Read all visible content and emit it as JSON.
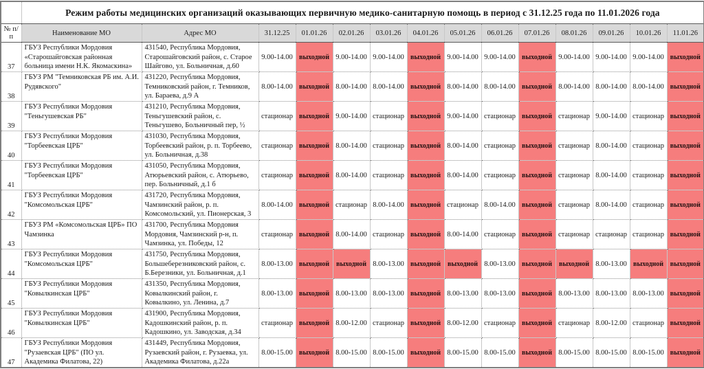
{
  "title": "Режим работы медицинских организаций оказывающих первичную медико-санитарную помощь в период с 31.12.25 года по 11.01.2026 года",
  "columns": {
    "num": "№ п/п",
    "name": "Наименование МО",
    "address": "Адрес МО",
    "dates": [
      "31.12.25",
      "01.01.26",
      "02.01.26",
      "03.01.26",
      "04.01.26",
      "05.01.26",
      "06.01.26",
      "07.01.26",
      "08.01.26",
      "09.01.26",
      "10.01.26",
      "11.01.26"
    ]
  },
  "labels": {
    "weekend": "выходной",
    "inpatient": "стационар"
  },
  "colors": {
    "weekend_bg": "#f67d7d",
    "header_bg": "#d9d9d9",
    "grid": "#8f8f8f"
  },
  "rows": [
    {
      "num": "37",
      "name": "ГБУЗ Республики Мордовия «Старошайговская районная больница имени Н.К. Якомаскина»",
      "address": "431540, Республика Мордовия, Старошайговский район, с. Старое Шайгово, ул. Больничная, д.60",
      "schedule": [
        "9.00-14.00",
        "выходной",
        "9.00-14.00",
        "9.00-14.00",
        "выходной",
        "9.00-14.00",
        "9.00-14.00",
        "выходной",
        "9.00-14.00",
        "9.00-14.00",
        "9.00-14.00",
        "выходной"
      ]
    },
    {
      "num": "38",
      "name": "ГБУЗ РМ \"Темниковская РБ им. А.И. Рудявского\"",
      "address": "431220, Республика Мордовия, Темниковский район, г. Темников, ул. Бараева, д.9 А",
      "schedule": [
        "8.00-14.00",
        "выходной",
        "8.00-14.00",
        "8.00-14.00",
        "выходной",
        "8.00-14.00",
        "8.00-14.00",
        "выходной",
        "8.00-14.00",
        "8.00-14.00",
        "8.00-14.00",
        "выходной"
      ]
    },
    {
      "num": "39",
      "name": "ГБУЗ Республики Мордовия \"Теньгушевская РБ\"",
      "address": "431210, Республика Мордовия, Теньгушевский район, с. Теньгушево, Больничный пер, ½",
      "schedule": [
        "стационар",
        "выходной",
        "9.00-14.00",
        "стационар",
        "выходной",
        "9.00-14.00",
        "стационар",
        "выходной",
        "стационар",
        "9.00-14.00",
        "стационар",
        "выходной"
      ]
    },
    {
      "num": "40",
      "name": "ГБУЗ Республики Мордовия \"Торбеевская ЦРБ\"",
      "address": "431030, Республика Мордовия, Торбеевский район, р. п. Торбеево, ул. Больничная, д.38",
      "schedule": [
        "стационар",
        "выходной",
        "8.00-14.00",
        "стационар",
        "выходной",
        "8.00-14.00",
        "стационар",
        "выходной",
        "стационар",
        "8.00-14.00",
        "стационар",
        "выходной"
      ]
    },
    {
      "num": "41",
      "name": "ГБУЗ Республики Мордовия \"Торбеевская ЦРБ\"",
      "address": "431050, Республика Мордовия, Атюрьевский район, с. Атюрьево, пер. Больничный, д.1 б",
      "schedule": [
        "стационар",
        "выходной",
        "8.00-14.00",
        "стационар",
        "выходной",
        "8.00-14.00",
        "стационар",
        "выходной",
        "стационар",
        "8.00-14.00",
        "стационар",
        "выходной"
      ]
    },
    {
      "num": "42",
      "name": "ГБУЗ Республики Мордовия \"Комсомольская ЦРБ\"",
      "address": "431720, Республика Мордовия, Чамзинский район, р. п. Комсомольский, ул. Пионерская, 3",
      "schedule": [
        "8.00-14.00",
        "выходной",
        "стационар",
        "8.00-14.00",
        "выходной",
        "стационар",
        "8.00-14.00",
        "выходной",
        "стационар",
        "8.00-14.00",
        "стационар",
        "выходной"
      ]
    },
    {
      "num": "43",
      "name": "ГБУЗ РМ «Комсомольская ЦРБ» ПО Чамзинка",
      "address": "431700, Республика Мордовия Мордовия, Чамзинский р-н, п. Чамзинка, ул. Победы, 12",
      "schedule": [
        "стационар",
        "выходной",
        "8.00-14.00",
        "стационар",
        "выходной",
        "8.00-14.00",
        "стационар",
        "выходной",
        "стационар",
        "стационар",
        "стационар",
        "выходной"
      ]
    },
    {
      "num": "44",
      "name": "ГБУЗ Республики Мордовия \"Комсомольская ЦРБ\"",
      "address": "431750, Республика Мордовия, Большеберезниковский район, с. Б.Березники, ул. Больничная, д.1",
      "schedule": [
        "8.00-13.00",
        "выходной",
        "выходной",
        "8.00-13.00",
        "выходной",
        "выходной",
        "8.00-13.00",
        "выходной",
        "выходной",
        "8.00-13.00",
        "выходной",
        "выходной"
      ]
    },
    {
      "num": "45",
      "name": "ГБУЗ Республики Мордовия \"Ковылкинская ЦРБ\"",
      "address": "431350, Республика Мордовия, Ковылкинский район, г. Ковылкино, ул. Ленина, д.7",
      "schedule": [
        "8.00-13.00",
        "выходной",
        "8.00-13.00",
        "8.00-13.00",
        "выходной",
        "8.00-13.00",
        "8.00-13.00",
        "выходной",
        "8.00-13.00",
        "8.00-13.00",
        "8.00-13.00",
        "выходной"
      ]
    },
    {
      "num": "46",
      "name": "ГБУЗ Республики Мордовия \"Ковылкинская ЦРБ\"",
      "address": "431900, Республика Мордовия, Кадошкинский район, р. п. Кадошкино, ул. Заводская, д.34",
      "schedule": [
        "стационар",
        "выходной",
        "8.00-12.00",
        "стационар",
        "выходной",
        "8.00-12.00",
        "стационар",
        "выходной",
        "стационар",
        "8.00-12.00",
        "стационар",
        "выходной"
      ]
    },
    {
      "num": "47",
      "name": "ГБУЗ Республики Мордовия \"Рузаевская ЦРБ\" (ПО ул. Академика Филатова, 22)",
      "address": "431449, Республика Мордовия, Рузаевский район, г. Рузаевка, ул. Академика Филатова, д.22а",
      "schedule": [
        "8.00-15.00",
        "выходной",
        "8.00-15.00",
        "8.00-15.00",
        "выходной",
        "8.00-15.00",
        "8.00-15.00",
        "выходной",
        "8.00-15.00",
        "8.00-15.00",
        "8.00-15.00",
        "выходной"
      ]
    }
  ]
}
